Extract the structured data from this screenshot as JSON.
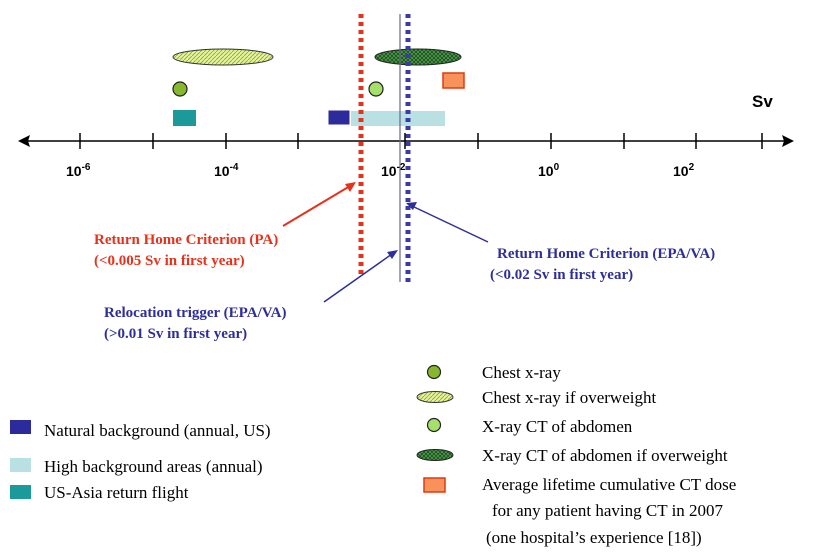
{
  "axis": {
    "unit_label": "Sv",
    "ticks": [
      {
        "base": "10",
        "exp": "-6"
      },
      {
        "base": "10",
        "exp": "-4"
      },
      {
        "base": "10",
        "exp": "-2"
      },
      {
        "base": "10",
        "exp": "0"
      },
      {
        "base": "10",
        "exp": "2"
      }
    ]
  },
  "annotations": {
    "pa": {
      "line1": "Return Home Criterion (PA)",
      "line2": "(<0.005 Sv in first year)",
      "color": "#e8311a"
    },
    "epa": {
      "line1": "Return Home Criterion (EPA/VA)",
      "line2": "(<0.02 Sv in first year)",
      "color": "#2e2e99"
    },
    "relocation": {
      "line1": "Relocation trigger (EPA/VA)",
      "line2": "(>0.01 Sv in first year)",
      "color": "#2e2e99"
    }
  },
  "legend_left": [
    {
      "label": "Natural background (annual, US)",
      "color": "#2b2b9b"
    },
    {
      "label": "High background areas (annual)",
      "color": "#b9e1e3"
    },
    {
      "label": "US-Asia return flight",
      "color": "#1c9a9a"
    }
  ],
  "legend_right": [
    {
      "label": "Chest x-ray"
    },
    {
      "label": "Chest x-ray if overweight"
    },
    {
      "label": "X-ray CT of abdomen"
    },
    {
      "label": "X-ray CT of abdomen if overweight"
    },
    {
      "label": "Average lifetime cumulative CT dose",
      "line2": "for any patient having CT in 2007",
      "line3": "(one hospital’s experience [18])"
    }
  ],
  "colors": {
    "chest_xray": "#86b82e",
    "chest_xray_overweight": "#d8ec80",
    "ct_abdomen": "#a6e06a",
    "ct_abdomen_overweight": "#3f8f3f",
    "cumulative_ct": "#f7935a",
    "cumulative_ct_border": "#e03a10"
  }
}
